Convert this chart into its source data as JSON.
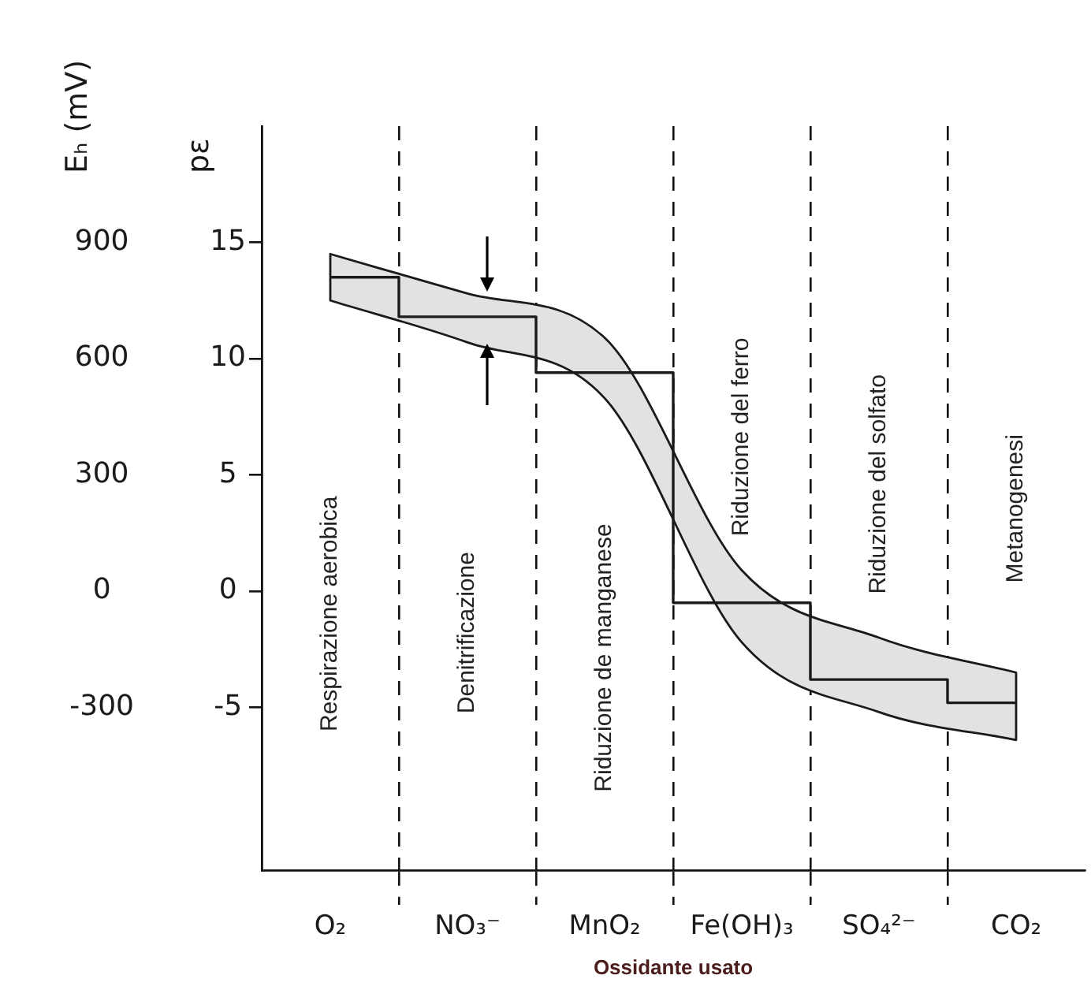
{
  "chart_data": {
    "type": "step",
    "xlabel": "Ossidante usato",
    "ylabel": "pε",
    "y2label": "Eₕ (mV)",
    "categories": [
      "O₂",
      "NO₃⁻",
      "MnO₂",
      "Fe(OH)₃",
      "SO₄²⁻",
      "CO₂"
    ],
    "series": [
      {
        "color": "#1a1a1a",
        "values": [
          13.5,
          11.8,
          9.4,
          -0.5,
          -3.8,
          -4.8
        ],
        "lower": [
          12.5,
          10.7,
          8.3,
          -2.2,
          -5.2,
          -6.4
        ],
        "upper": [
          14.5,
          12.8,
          10.9,
          0.9,
          -2.0,
          -3.5
        ]
      }
    ],
    "ylim": [
      -12,
      20
    ],
    "yticks": [
      -5,
      0,
      5,
      10,
      15
    ],
    "y2lim": [
      -720,
      1200
    ],
    "y2ticks": [
      -300,
      0,
      300,
      600,
      900
    ],
    "grid": "x",
    "annotations": [
      "Respirazione aerobica",
      "Denitrificazione",
      "Riduzione de manganese",
      "Riduzione del ferro",
      "Riduzione del solfato",
      "Metanogenesi"
    ]
  }
}
